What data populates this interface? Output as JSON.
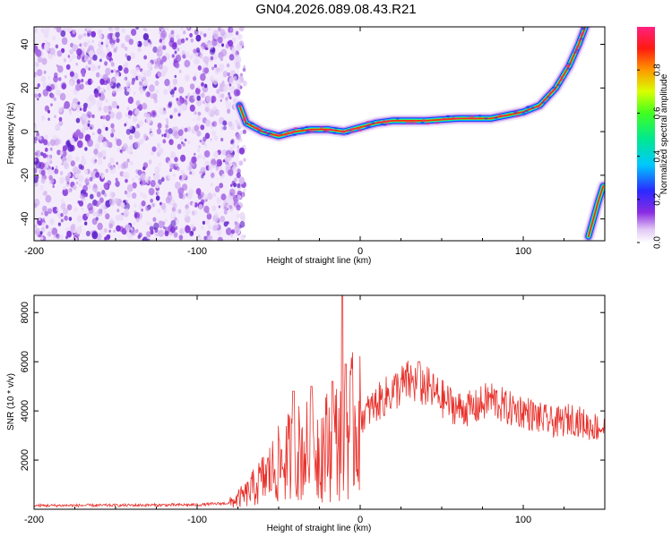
{
  "title": "GN04.2026.089.08.43.R21",
  "chart_data": [
    {
      "type": "heatmap",
      "xlabel": "Height of straight line (km)",
      "ylabel": "Frequency (Hz)",
      "xlim": [
        -200,
        150
      ],
      "ylim": [
        -50,
        48
      ],
      "x_ticks": [
        "-200",
        "-100",
        "0",
        "100"
      ],
      "y_ticks": [
        "-40",
        "-20",
        "0",
        "20",
        "40"
      ],
      "colorbar": {
        "label": "Normalized spectral amplitude",
        "range": [
          0,
          1
        ],
        "ticks": [
          "0.0",
          "0.2",
          "0.4",
          "0.6",
          "0.8"
        ]
      },
      "noise_region_x": [
        -200,
        -74
      ],
      "ridge": [
        {
          "x": -74,
          "y": 12
        },
        {
          "x": -70,
          "y": 4
        },
        {
          "x": -60,
          "y": 0
        },
        {
          "x": -50,
          "y": -2
        },
        {
          "x": -40,
          "y": 0
        },
        {
          "x": -30,
          "y": 1
        },
        {
          "x": -20,
          "y": 1
        },
        {
          "x": -10,
          "y": 0
        },
        {
          "x": 0,
          "y": 2
        },
        {
          "x": 10,
          "y": 4
        },
        {
          "x": 20,
          "y": 5
        },
        {
          "x": 40,
          "y": 5
        },
        {
          "x": 60,
          "y": 6
        },
        {
          "x": 80,
          "y": 6
        },
        {
          "x": 100,
          "y": 9
        },
        {
          "x": 110,
          "y": 12
        },
        {
          "x": 120,
          "y": 20
        },
        {
          "x": 128,
          "y": 30
        },
        {
          "x": 134,
          "y": 40
        },
        {
          "x": 138,
          "y": 48
        }
      ],
      "aliased_ridge": [
        {
          "x": 140,
          "y": -48
        },
        {
          "x": 143,
          "y": -40
        },
        {
          "x": 146,
          "y": -32
        },
        {
          "x": 149,
          "y": -25
        }
      ]
    },
    {
      "type": "line",
      "xlabel": "Height of straight line (km)",
      "ylabel": "SNR (10 * v/v)",
      "xlim": [
        -200,
        150
      ],
      "ylim": [
        0,
        8700
      ],
      "x_ticks": [
        "-200",
        "-100",
        "0",
        "100"
      ],
      "y_ticks": [
        "2000",
        "4000",
        "6000",
        "8000"
      ],
      "color": "#e8302a",
      "series": [
        {
          "values": [
            {
              "x": -200,
              "y": 150
            },
            {
              "x": -150,
              "y": 160
            },
            {
              "x": -100,
              "y": 180
            },
            {
              "x": -80,
              "y": 250
            },
            {
              "x": -70,
              "y": 600
            },
            {
              "x": -60,
              "y": 1200
            },
            {
              "x": -50,
              "y": 1800
            },
            {
              "x": -40,
              "y": 2300
            },
            {
              "x": -30,
              "y": 2400
            },
            {
              "x": -20,
              "y": 2600
            },
            {
              "x": -10,
              "y": 3000
            },
            {
              "x": 0,
              "y": 3700
            },
            {
              "x": 10,
              "y": 4300
            },
            {
              "x": 20,
              "y": 4800
            },
            {
              "x": 30,
              "y": 5200
            },
            {
              "x": 40,
              "y": 5000
            },
            {
              "x": 50,
              "y": 4500
            },
            {
              "x": 60,
              "y": 4100
            },
            {
              "x": 70,
              "y": 4100
            },
            {
              "x": 80,
              "y": 4500
            },
            {
              "x": 90,
              "y": 4100
            },
            {
              "x": 100,
              "y": 4000
            },
            {
              "x": 110,
              "y": 3700
            },
            {
              "x": 120,
              "y": 3500
            },
            {
              "x": 130,
              "y": 3700
            },
            {
              "x": 140,
              "y": 3400
            },
            {
              "x": 150,
              "y": 3300
            }
          ]
        }
      ],
      "spikes": [
        {
          "x": -41,
          "y": 4800
        },
        {
          "x": -30,
          "y": 5000
        },
        {
          "x": -17,
          "y": 5200
        },
        {
          "x": -11,
          "y": 8700
        },
        {
          "x": -9,
          "y": 5900
        },
        {
          "x": 36,
          "y": 6000
        }
      ]
    }
  ]
}
